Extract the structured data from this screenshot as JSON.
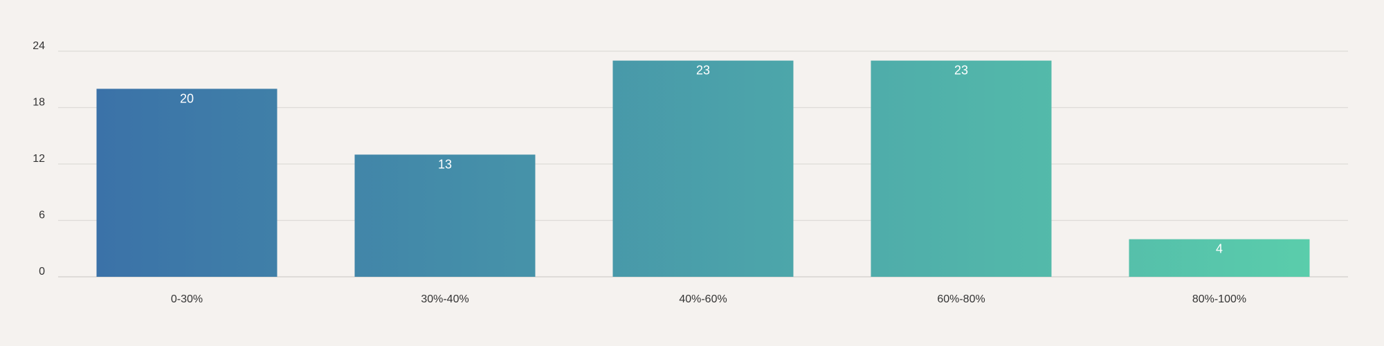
{
  "chart_data": {
    "type": "bar",
    "title": "",
    "xlabel": "",
    "ylabel": "",
    "categories": [
      "0-30%",
      "30%-40%",
      "40%-60%",
      "60%-80%",
      "80%-100%"
    ],
    "values": [
      20,
      13,
      23,
      23,
      4
    ],
    "ylim": [
      0,
      24
    ],
    "yticks": [
      0,
      6,
      12,
      18,
      24
    ],
    "grid": true,
    "legend": "none",
    "data_labels": true,
    "colors": {
      "gradient_start": "#3b72a8",
      "gradient_end": "#5acdab",
      "gridline": "#dedbd8",
      "background": "#f5f2ef",
      "label_text": "#ffffff",
      "tick_text": "#333333"
    }
  }
}
